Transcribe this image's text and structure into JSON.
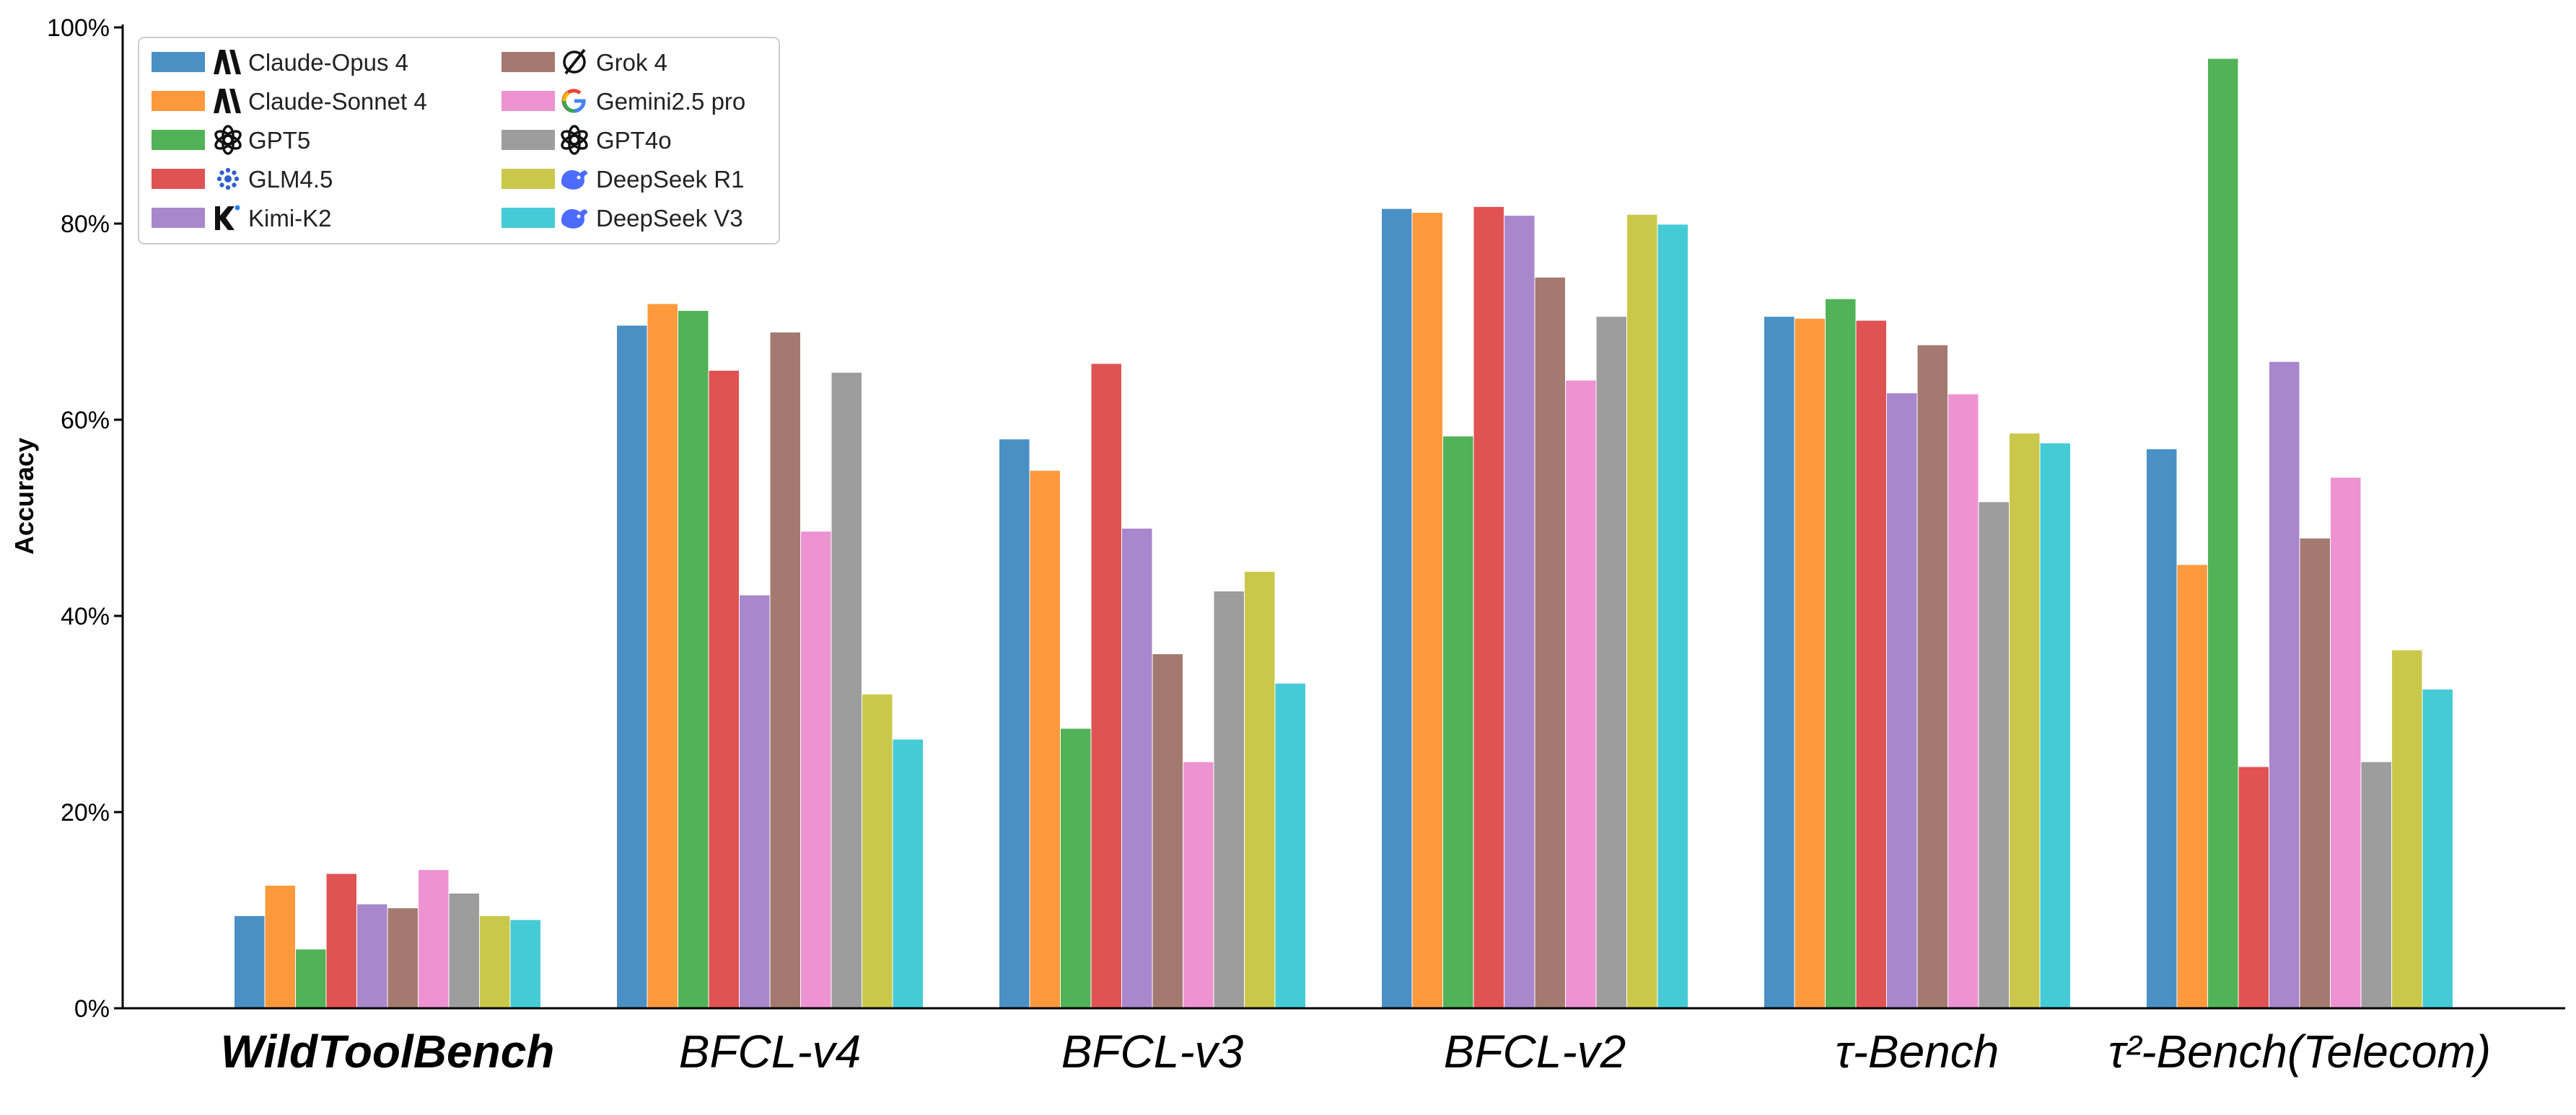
{
  "chart_data": {
    "type": "bar",
    "ylabel": "Accuracy",
    "ylim": [
      0,
      100
    ],
    "yticks": [
      "0%",
      "20%",
      "40%",
      "60%",
      "80%",
      "100%"
    ],
    "categories": [
      {
        "label": "WildToolBench",
        "bold": true
      },
      {
        "label": "BFCL-v4",
        "bold": false
      },
      {
        "label": "BFCL-v3",
        "bold": false
      },
      {
        "label": "BFCL-v2",
        "bold": false
      },
      {
        "label": "τ-Bench",
        "bold": false
      },
      {
        "label": "τ²-Bench(Telecom)",
        "bold": false
      }
    ],
    "legend_position": "top-left",
    "series": [
      {
        "name": "Claude-Opus 4",
        "color": "#4a90c4",
        "icon": "anthropic-icon",
        "values": [
          9.4,
          69.6,
          58.0,
          81.5,
          70.5,
          57.0
        ]
      },
      {
        "name": "Claude-Sonnet 4",
        "color": "#ff9a3c",
        "icon": "anthropic-icon",
        "values": [
          12.5,
          71.8,
          54.8,
          81.1,
          70.3,
          45.2
        ]
      },
      {
        "name": "GPT5",
        "color": "#52b257",
        "icon": "openai-icon",
        "values": [
          6.0,
          71.1,
          28.5,
          58.3,
          72.3,
          96.8
        ]
      },
      {
        "name": "GLM4.5",
        "color": "#e05353",
        "icon": "glm-icon",
        "values": [
          13.7,
          65.0,
          65.7,
          81.7,
          70.1,
          24.6
        ]
      },
      {
        "name": "Kimi-K2",
        "color": "#a987cc",
        "icon": "kimi-icon",
        "values": [
          10.6,
          42.1,
          48.9,
          80.8,
          62.7,
          65.9
        ]
      },
      {
        "name": "Grok 4",
        "color": "#a47a70",
        "icon": "grok-icon",
        "values": [
          10.2,
          68.9,
          36.1,
          74.5,
          67.6,
          47.9
        ]
      },
      {
        "name": "Gemini2.5 pro",
        "color": "#ee93d1",
        "icon": "google-icon",
        "values": [
          14.1,
          48.6,
          25.1,
          64.0,
          62.6,
          54.1
        ]
      },
      {
        "name": "GPT4o",
        "color": "#9d9d9d",
        "icon": "openai-icon",
        "values": [
          11.7,
          64.8,
          42.5,
          70.5,
          51.6,
          25.1
        ]
      },
      {
        "name": "DeepSeek R1",
        "color": "#cac84b",
        "icon": "deepseek-icon",
        "values": [
          9.4,
          32.0,
          44.5,
          80.9,
          58.6,
          36.5
        ]
      },
      {
        "name": "DeepSeek V3",
        "color": "#45cbd6",
        "icon": "deepseek-icon",
        "values": [
          9.0,
          27.4,
          33.1,
          79.9,
          57.6,
          32.5
        ]
      }
    ]
  }
}
